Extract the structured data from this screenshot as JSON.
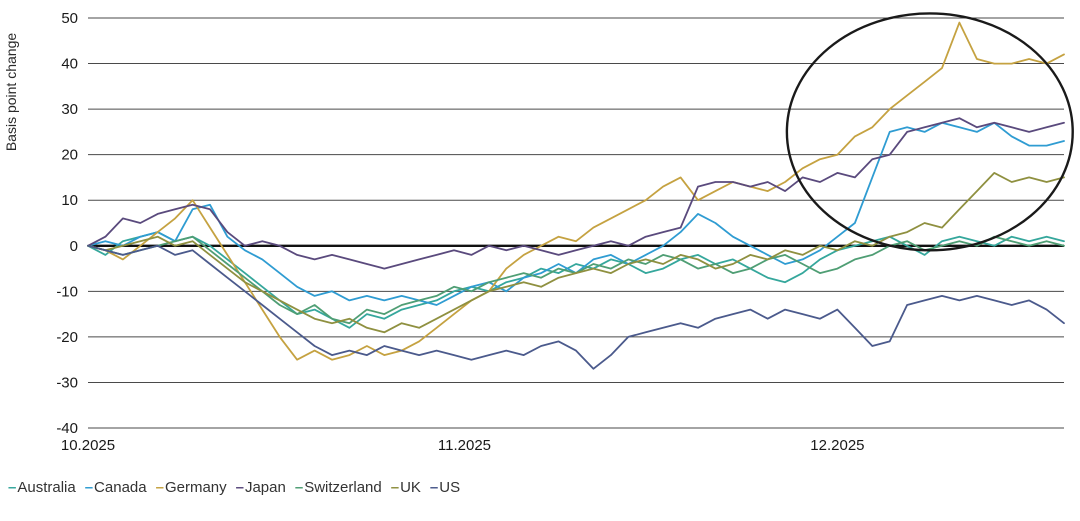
{
  "page": {
    "background": "#ffffff"
  },
  "legend": {
    "dash": "–"
  },
  "chart_data": {
    "type": "line",
    "title": "",
    "xlabel": "",
    "ylabel": "Basis point change",
    "ylim": [
      -40,
      50
    ],
    "y_ticks": [
      50,
      40,
      30,
      20,
      10,
      0,
      -10,
      -20,
      -30,
      -40
    ],
    "x_ticks": [
      {
        "label": "10.2025",
        "index": 0
      },
      {
        "label": "11.2025",
        "index": 21.6
      },
      {
        "label": "12.2025",
        "index": 43
      }
    ],
    "grid": "horizontal",
    "zero_line": true,
    "legend_position": "bottom-left",
    "n_points": 57,
    "series": [
      {
        "name": "Australia",
        "color": "#35a79c",
        "values": [
          0,
          -2,
          1,
          2,
          3,
          1,
          2,
          0,
          -3,
          -6,
          -9,
          -12,
          -15,
          -14,
          -16,
          -18,
          -15,
          -16,
          -14,
          -13,
          -12,
          -10,
          -9,
          -10,
          -8,
          -7,
          -5,
          -6,
          -4,
          -5,
          -3,
          -4,
          -6,
          -5,
          -3,
          -2,
          -4,
          -3,
          -5,
          -7,
          -8,
          -6,
          -3,
          -1,
          0,
          1,
          2,
          0,
          -2,
          1,
          2,
          1,
          0,
          2,
          1,
          2,
          1
        ]
      },
      {
        "name": "Canada",
        "color": "#2f9cd2",
        "values": [
          0,
          1,
          0,
          2,
          3,
          1,
          8,
          9,
          2,
          -1,
          -3,
          -6,
          -9,
          -11,
          -10,
          -12,
          -11,
          -12,
          -11,
          -12,
          -13,
          -11,
          -9,
          -8,
          -10,
          -7,
          -6,
          -4,
          -6,
          -3,
          -2,
          -4,
          -2,
          0,
          3,
          7,
          5,
          2,
          0,
          -2,
          -4,
          -3,
          -1,
          2,
          5,
          15,
          25,
          26,
          25,
          27,
          26,
          25,
          27,
          24,
          22,
          22,
          23
        ]
      },
      {
        "name": "Germany",
        "color": "#c5a241",
        "values": [
          0,
          -1,
          -3,
          0,
          3,
          6,
          10,
          4,
          -2,
          -8,
          -14,
          -20,
          -25,
          -23,
          -25,
          -24,
          -22,
          -24,
          -23,
          -21,
          -18,
          -15,
          -12,
          -10,
          -5,
          -2,
          0,
          2,
          1,
          4,
          6,
          8,
          10,
          13,
          15,
          10,
          12,
          14,
          13,
          12,
          14,
          17,
          19,
          20,
          24,
          26,
          30,
          33,
          36,
          39,
          49,
          41,
          40,
          40,
          41,
          40,
          42
        ]
      },
      {
        "name": "Japan",
        "color": "#5a4a7d",
        "values": [
          0,
          2,
          6,
          5,
          7,
          8,
          9,
          8,
          3,
          0,
          1,
          0,
          -2,
          -3,
          -2,
          -3,
          -4,
          -5,
          -4,
          -3,
          -2,
          -1,
          -2,
          0,
          -1,
          0,
          -1,
          -2,
          -1,
          0,
          1,
          0,
          2,
          3,
          4,
          13,
          14,
          14,
          13,
          14,
          12,
          15,
          14,
          16,
          15,
          19,
          20,
          25,
          26,
          27,
          28,
          26,
          27,
          26,
          25,
          26,
          27
        ]
      },
      {
        "name": "Switzerland",
        "color": "#4f9e74",
        "values": [
          0,
          -1,
          -2,
          -1,
          0,
          1,
          2,
          -1,
          -4,
          -7,
          -10,
          -13,
          -15,
          -13,
          -16,
          -17,
          -14,
          -15,
          -13,
          -12,
          -11,
          -9,
          -10,
          -8,
          -7,
          -6,
          -7,
          -5,
          -6,
          -4,
          -5,
          -3,
          -4,
          -2,
          -3,
          -5,
          -4,
          -6,
          -5,
          -3,
          -2,
          -4,
          -6,
          -5,
          -3,
          -2,
          0,
          1,
          -1,
          0,
          1,
          0,
          2,
          1,
          0,
          1,
          0
        ]
      },
      {
        "name": "UK",
        "color": "#8f9040",
        "values": [
          0,
          -1,
          0,
          1,
          2,
          0,
          1,
          -2,
          -5,
          -8,
          -10,
          -12,
          -14,
          -16,
          -17,
          -16,
          -18,
          -19,
          -17,
          -18,
          -16,
          -14,
          -12,
          -10,
          -9,
          -8,
          -9,
          -7,
          -6,
          -5,
          -6,
          -4,
          -3,
          -4,
          -2,
          -3,
          -5,
          -4,
          -2,
          -3,
          -1,
          -2,
          0,
          -1,
          1,
          0,
          2,
          3,
          5,
          4,
          8,
          12,
          16,
          14,
          15,
          14,
          15
        ]
      },
      {
        "name": "US",
        "color": "#4b5a8c",
        "values": [
          0,
          -1,
          -2,
          -1,
          0,
          -2,
          -1,
          -4,
          -7,
          -10,
          -13,
          -16,
          -19,
          -22,
          -24,
          -23,
          -24,
          -22,
          -23,
          -24,
          -23,
          -24,
          -25,
          -24,
          -23,
          -24,
          -22,
          -21,
          -23,
          -27,
          -24,
          -20,
          -19,
          -18,
          -17,
          -18,
          -16,
          -15,
          -14,
          -16,
          -14,
          -15,
          -16,
          -14,
          -18,
          -22,
          -21,
          -13,
          -12,
          -11,
          -12,
          -11,
          -12,
          -13,
          -12,
          -14,
          -17
        ]
      }
    ],
    "annotation": {
      "type": "ellipse",
      "x_center_index": 48.3,
      "y_center_bp": 25,
      "x_radius_index": 8.2,
      "y_radius_bp": 26,
      "color": "#1a1a1a",
      "stroke_width": 2.4
    }
  }
}
